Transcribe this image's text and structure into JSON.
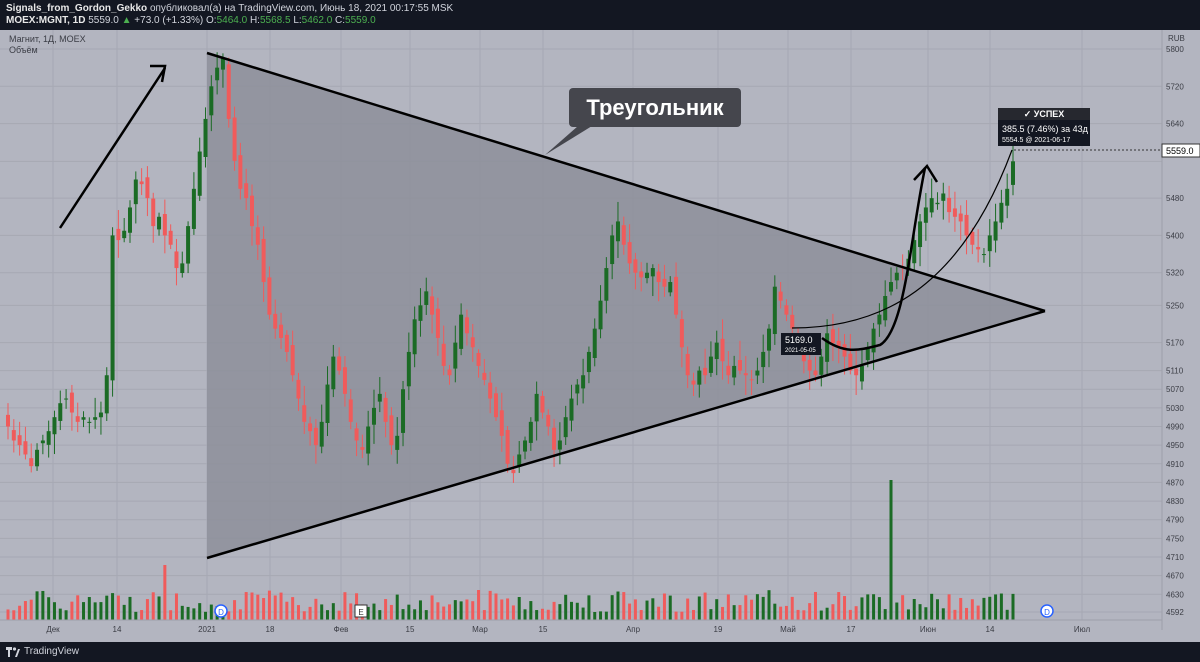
{
  "header": {
    "author": "Signals_from_Gordon_Gekko",
    "published_text": "опубликовал(а) на TradingView.com, Июнь 18, 2021 00:17:55 MSK",
    "symbol": "MOEX:MGNT, 1D",
    "last": "5559.0",
    "change": "+73.0 (+1.33%)",
    "o_label": "O:",
    "o": "5464.0",
    "h_label": "H:",
    "h": "5568.5",
    "l_label": "L:",
    "l": "5462.0",
    "c_label": "C:",
    "c": "5559.0"
  },
  "legend": {
    "series_title": "Магнит, 1Д, MOEX",
    "volume_title": "Объём",
    "currency": "RUB"
  },
  "annotations": {
    "triangle_label": "Треугольник",
    "success_label": "✓ УСПЕХ",
    "success_value": "385.5 (7.46%) за 43д",
    "success_sub": "5554.5 @ 2021-06-17",
    "entry_price": "5169.0",
    "entry_date": "2021-05-05",
    "last_price_tag": "5559.0",
    "event_d": "D",
    "event_e": "E"
  },
  "footer": {
    "brand": "TradingView"
  },
  "colors": {
    "background": "#b3b5c0",
    "up": "#1b6b25",
    "down": "#f05b5b",
    "triangle_fill": "#8d8f9a",
    "axis_bg": "#b3b5c0"
  },
  "chart_data": {
    "type": "candlestick",
    "title": "Магнит, 1Д, MOEX",
    "currency": "RUB",
    "y_axis_ticks": [
      5800,
      5720,
      5640,
      5559,
      5480,
      5400,
      5320,
      5250,
      5170,
      5110,
      5070,
      5030,
      4990,
      4950,
      4910,
      4870,
      4830,
      4790,
      4750,
      4710,
      4670,
      4630,
      4592
    ],
    "x_axis_labels": [
      "Дек",
      "14",
      "2021",
      "18",
      "Фев",
      "15",
      "Мар",
      "15",
      "Апр",
      "19",
      "Май",
      "17",
      "Июн",
      "14",
      "Июл"
    ],
    "ylim": [
      4592,
      5830
    ],
    "grid": true,
    "candles_note": "daily OHLC, Nov 2020 – Jun 17 2021",
    "closes": [
      4990,
      4960,
      4950,
      4930,
      4905,
      4940,
      4960,
      4980,
      5010,
      5040,
      5050,
      5020,
      5000,
      5010,
      5000,
      5010,
      5020,
      5100,
      5400,
      5390,
      5410,
      5460,
      5520,
      5510,
      5480,
      5420,
      5440,
      5400,
      5380,
      5330,
      5340,
      5420,
      5500,
      5580,
      5650,
      5720,
      5760,
      5780,
      5650,
      5560,
      5500,
      5480,
      5420,
      5380,
      5300,
      5230,
      5200,
      5180,
      5150,
      5100,
      5050,
      5000,
      4980,
      4950,
      5000,
      5080,
      5140,
      5110,
      5060,
      5000,
      4960,
      4940,
      4990,
      5030,
      5060,
      5000,
      4950,
      4970,
      5070,
      5150,
      5220,
      5250,
      5280,
      5230,
      5180,
      5120,
      5100,
      5170,
      5230,
      5190,
      5160,
      5120,
      5090,
      5050,
      5010,
      4970,
      4910,
      4890,
      4930,
      4960,
      5000,
      5060,
      5020,
      4990,
      4940,
      4960,
      5010,
      5050,
      5080,
      5100,
      5150,
      5200,
      5260,
      5330,
      5400,
      5430,
      5380,
      5340,
      5320,
      5310,
      5320,
      5330,
      5300,
      5290,
      5300,
      5230,
      5160,
      5100,
      5080,
      5110,
      5100,
      5140,
      5170,
      5130,
      5100,
      5120,
      5110,
      5100,
      5090,
      5110,
      5150,
      5200,
      5290,
      5260,
      5230,
      5200,
      5160,
      5130,
      5110,
      5100,
      5140,
      5190,
      5169,
      5160,
      5140,
      5110,
      5100,
      5120,
      5160,
      5200,
      5230,
      5270,
      5300,
      5320,
      5330,
      5350,
      5390,
      5430,
      5460,
      5480,
      5470,
      5490,
      5450,
      5440,
      5430,
      5400,
      5380,
      5370,
      5360,
      5400,
      5430,
      5470,
      5500,
      5559
    ],
    "volumes_note": "relative daily volume bars with spike in mid-May",
    "drawings": {
      "triangle": {
        "apex_top": [
          5790
        ],
        "apex_bottom": [
          4710
        ],
        "apex_right": [
          5220
        ]
      },
      "target_label": "Треугольник"
    }
  }
}
